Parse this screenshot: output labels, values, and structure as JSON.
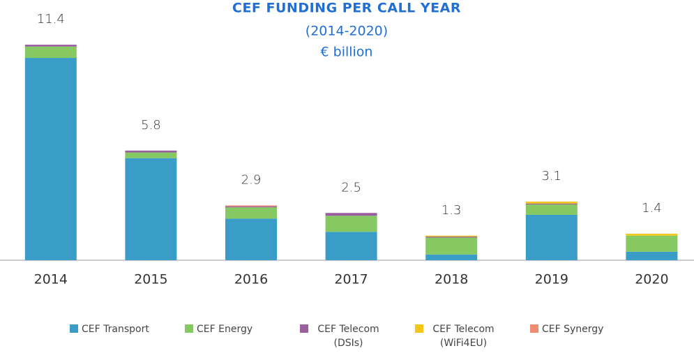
{
  "chart_data": {
    "type": "stacked_bar",
    "title": "CEF FUNDING PER CALL YEAR",
    "subtitle": "(2014-2020)",
    "unit": "€ billion",
    "categories": [
      "2014",
      "2015",
      "2016",
      "2017",
      "2018",
      "2019",
      "2020"
    ],
    "series": [
      {
        "name": "CEF Transport",
        "color": "#3a9dc8",
        "values": [
          10.7,
          5.4,
          2.2,
          1.5,
          0.3,
          2.4,
          0.45
        ]
      },
      {
        "name": "CEF Energy",
        "color": "#86c862",
        "values": [
          0.6,
          0.3,
          0.6,
          0.85,
          0.9,
          0.55,
          0.85
        ]
      },
      {
        "name": "CEF Telecom (DSIs)",
        "color": "#9b5fa0",
        "values": [
          0.1,
          0.1,
          0.05,
          0.15,
          0.05,
          0.05,
          0
        ]
      },
      {
        "name": "CEF Telecom (WiFi4EU)",
        "color": "#f5c518",
        "values": [
          0,
          0,
          0,
          0,
          0.05,
          0.1,
          0.1
        ]
      },
      {
        "name": "CEF Synergy",
        "color": "#f08a72",
        "values": [
          0,
          0,
          0.05,
          0,
          0,
          0,
          0
        ]
      }
    ],
    "totals": [
      11.4,
      5.8,
      2.9,
      2.5,
      1.3,
      3.1,
      1.4
    ],
    "ylim": [
      0,
      12
    ]
  }
}
